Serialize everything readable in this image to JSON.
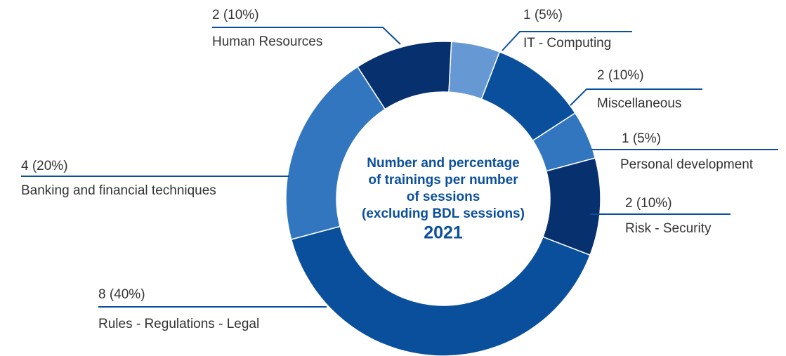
{
  "chart_data": {
    "type": "donut",
    "title": [
      "Number and percentage",
      "of trainings per number",
      "of sessions",
      "(excluding BDL sessions)"
    ],
    "subtitle": "2021",
    "categories": [
      "IT - Computing",
      "Miscellaneous",
      "Personal development",
      "Risk - Security",
      "Rules - Regulations - Legal",
      "Banking and financial techniques",
      "Human Resources"
    ],
    "values": [
      1,
      2,
      1,
      2,
      8,
      4,
      2
    ],
    "value_labels": [
      "1 (5%)",
      "2 (10%)",
      "1 (5%)",
      "2 (10%)",
      "8 (40%)",
      "4 (20%)",
      "2 (10%)"
    ],
    "colors": [
      "#6699d4",
      "#0a4f9c",
      "#3276c0",
      "#06306e",
      "#0a4f9c",
      "#3276c0",
      "#06306e"
    ]
  }
}
